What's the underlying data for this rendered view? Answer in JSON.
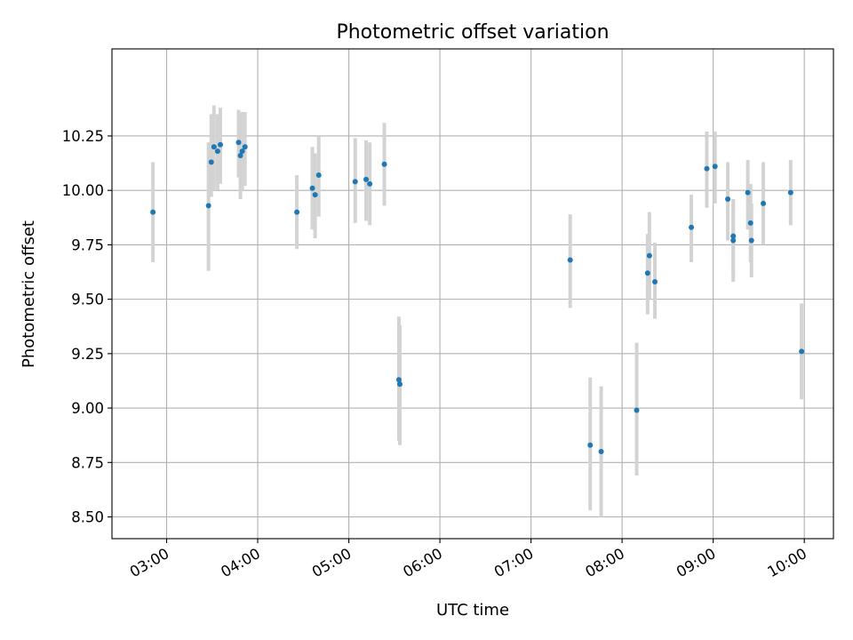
{
  "chart_data": {
    "type": "scatter",
    "title": "Photometric offset variation",
    "xlabel": "UTC time",
    "ylabel": "Photometric offset",
    "xlim_hours": [
      2.4,
      10.32
    ],
    "ylim": [
      8.4,
      10.65
    ],
    "grid": true,
    "x_tick_hours": [
      3,
      4,
      5,
      6,
      7,
      8,
      9,
      10
    ],
    "x_tick_labels": [
      "03:00",
      "04:00",
      "05:00",
      "06:00",
      "07:00",
      "08:00",
      "09:00",
      "10:00"
    ],
    "y_ticks": [
      8.5,
      8.75,
      9.0,
      9.25,
      9.5,
      9.75,
      10.0,
      10.25
    ],
    "y_tick_labels": [
      "8.50",
      "8.75",
      "9.00",
      "9.25",
      "9.50",
      "9.75",
      "10.00",
      "10.25"
    ],
    "point_color": "#1f77b4",
    "errorbar_color": "#d3d3d3",
    "series": [
      {
        "name": "offset",
        "points": [
          {
            "t": 2.85,
            "y": 9.9,
            "lo": 9.67,
            "hi": 10.13
          },
          {
            "t": 3.46,
            "y": 9.93,
            "lo": 9.63,
            "hi": 10.22
          },
          {
            "t": 3.49,
            "y": 10.13,
            "lo": 9.97,
            "hi": 10.35
          },
          {
            "t": 3.52,
            "y": 10.2,
            "lo": 10.0,
            "hi": 10.39
          },
          {
            "t": 3.56,
            "y": 10.18,
            "lo": 10.0,
            "hi": 10.35
          },
          {
            "t": 3.59,
            "y": 10.21,
            "lo": 10.03,
            "hi": 10.38
          },
          {
            "t": 3.79,
            "y": 10.22,
            "lo": 10.06,
            "hi": 10.37
          },
          {
            "t": 3.81,
            "y": 10.16,
            "lo": 9.96,
            "hi": 10.35
          },
          {
            "t": 3.83,
            "y": 10.18,
            "lo": 10.0,
            "hi": 10.36
          },
          {
            "t": 3.86,
            "y": 10.2,
            "lo": 10.02,
            "hi": 10.36
          },
          {
            "t": 4.43,
            "y": 9.9,
            "lo": 9.73,
            "hi": 10.07
          },
          {
            "t": 4.6,
            "y": 10.01,
            "lo": 9.82,
            "hi": 10.2
          },
          {
            "t": 4.63,
            "y": 9.98,
            "lo": 9.78,
            "hi": 10.17
          },
          {
            "t": 4.67,
            "y": 10.07,
            "lo": 9.88,
            "hi": 10.25
          },
          {
            "t": 5.07,
            "y": 10.04,
            "lo": 9.85,
            "hi": 10.24
          },
          {
            "t": 5.19,
            "y": 10.05,
            "lo": 9.86,
            "hi": 10.23
          },
          {
            "t": 5.23,
            "y": 10.03,
            "lo": 9.84,
            "hi": 10.22
          },
          {
            "t": 5.39,
            "y": 10.12,
            "lo": 9.93,
            "hi": 10.31
          },
          {
            "t": 5.55,
            "y": 9.13,
            "lo": 8.85,
            "hi": 9.42
          },
          {
            "t": 5.56,
            "y": 9.11,
            "lo": 8.83,
            "hi": 9.38
          },
          {
            "t": 7.43,
            "y": 9.68,
            "lo": 9.46,
            "hi": 9.89
          },
          {
            "t": 7.65,
            "y": 8.83,
            "lo": 8.53,
            "hi": 9.14
          },
          {
            "t": 7.77,
            "y": 8.8,
            "lo": 8.5,
            "hi": 9.1
          },
          {
            "t": 8.16,
            "y": 8.99,
            "lo": 8.69,
            "hi": 9.3
          },
          {
            "t": 8.28,
            "y": 9.62,
            "lo": 9.43,
            "hi": 9.8
          },
          {
            "t": 8.3,
            "y": 9.7,
            "lo": 9.5,
            "hi": 9.9
          },
          {
            "t": 8.36,
            "y": 9.58,
            "lo": 9.41,
            "hi": 9.76
          },
          {
            "t": 8.76,
            "y": 9.83,
            "lo": 9.67,
            "hi": 9.98
          },
          {
            "t": 8.93,
            "y": 10.1,
            "lo": 9.92,
            "hi": 10.27
          },
          {
            "t": 9.02,
            "y": 10.11,
            "lo": 9.94,
            "hi": 10.27
          },
          {
            "t": 9.16,
            "y": 9.96,
            "lo": 9.77,
            "hi": 10.13
          },
          {
            "t": 9.22,
            "y": 9.79,
            "lo": 9.62,
            "hi": 9.96
          },
          {
            "t": 9.22,
            "y": 9.77,
            "lo": 9.58,
            "hi": 9.94
          },
          {
            "t": 9.38,
            "y": 9.99,
            "lo": 9.82,
            "hi": 10.14
          },
          {
            "t": 9.41,
            "y": 9.85,
            "lo": 9.67,
            "hi": 10.03
          },
          {
            "t": 9.42,
            "y": 9.77,
            "lo": 9.6,
            "hi": 9.94
          },
          {
            "t": 9.55,
            "y": 9.94,
            "lo": 9.75,
            "hi": 10.13
          },
          {
            "t": 9.85,
            "y": 9.99,
            "lo": 9.84,
            "hi": 10.14
          },
          {
            "t": 9.97,
            "y": 9.26,
            "lo": 9.04,
            "hi": 9.48
          }
        ]
      }
    ]
  }
}
